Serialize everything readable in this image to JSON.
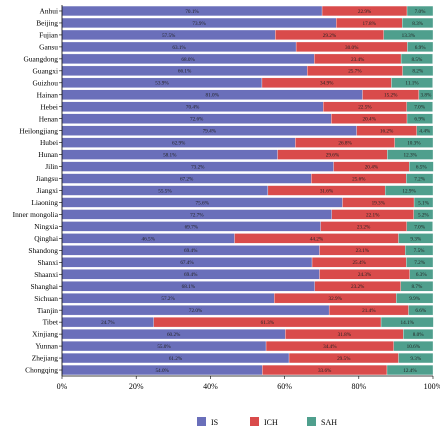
{
  "chart_data": {
    "type": "bar",
    "orientation": "horizontal",
    "stacked": true,
    "percent_stacked": true,
    "categories": [
      "Anhui",
      "Beijing",
      "Fujian",
      "Gansu",
      "Guangdong",
      "Guangxi",
      "Guizhou",
      "Hainan",
      "Hebei",
      "Henan",
      "Heilongjiang",
      "Hubei",
      "Hunan",
      "Jilin",
      "Jiangsu",
      "Jiangxi",
      "Liaoning",
      "Inner mongolia",
      "Ningxia",
      "Qinghai",
      "Shandong",
      "Shanxi",
      "Shaanxi",
      "Shanghai",
      "Sichuan",
      "Tianjin",
      "Tibet",
      "Xinjiang",
      "Yunnan",
      "Zhejiang",
      "Chongqing"
    ],
    "series": [
      {
        "name": "IS",
        "color": "#6a6fba",
        "values": [
          70.1,
          73.9,
          57.5,
          63.1,
          68.0,
          66.1,
          53.9,
          81.0,
          70.4,
          72.6,
          79.4,
          62.9,
          58.1,
          73.2,
          67.2,
          55.5,
          75.6,
          72.7,
          69.7,
          46.5,
          69.4,
          67.4,
          69.4,
          68.1,
          57.2,
          72.0,
          24.7,
          60.2,
          55.0,
          61.2,
          54.0
        ],
        "labels": [
          "70.1%",
          "73.9%",
          "57.5%",
          "63.1%",
          "68.0%",
          "66.1%",
          "53.9%",
          "81.0%",
          "70.4%",
          "72.6%",
          "79.4%",
          "62.9%",
          "58.1%",
          "73.2%",
          "67.2%",
          "55.5%",
          "75.6%",
          "72.7%",
          "69.7%",
          "46.5%",
          "69.4%",
          "67.4%",
          "69.4%",
          "68.1%",
          "57.2%",
          "72.0%",
          "24.7%",
          "60.2%",
          "55.0%",
          "61.2%",
          "54.0%"
        ]
      },
      {
        "name": "ICH",
        "color": "#d94b4b",
        "values": [
          22.9,
          17.8,
          29.2,
          30.0,
          23.4,
          25.7,
          34.9,
          15.2,
          22.5,
          20.4,
          16.2,
          26.8,
          29.6,
          20.4,
          25.6,
          31.6,
          19.3,
          22.1,
          23.2,
          44.2,
          23.1,
          25.4,
          24.3,
          23.2,
          32.9,
          21.4,
          61.3,
          31.8,
          34.4,
          29.5,
          33.6
        ],
        "labels": [
          "22.9%",
          "17.8%",
          "29.2%",
          "30.0%",
          "23.4%",
          "25.7%",
          "34.9%",
          "15.2%",
          "22.5%",
          "20.4%",
          "16.2%",
          "26.8%",
          "29.6%",
          "20.4%",
          "25.6%",
          "31.6%",
          "19.3%",
          "22.1%",
          "23.2%",
          "44.2%",
          "23.1%",
          "25.4%",
          "24.3%",
          "23.2%",
          "32.9%",
          "21.4%",
          "61.3%",
          "31.8%",
          "34.4%",
          "29.5%",
          "33.6%"
        ]
      },
      {
        "name": "SAH",
        "color": "#4f9f8d",
        "values": [
          7.0,
          8.3,
          13.3,
          6.9,
          8.5,
          8.2,
          11.1,
          3.8,
          7.0,
          6.9,
          4.4,
          10.3,
          12.3,
          6.5,
          7.2,
          12.9,
          5.1,
          5.2,
          7.0,
          9.3,
          7.5,
          7.2,
          6.3,
          8.7,
          9.9,
          6.6,
          14.1,
          8.0,
          10.6,
          9.3,
          12.4
        ],
        "labels": [
          "7.0%",
          "8.3%",
          "13.3%",
          "6.9%",
          "8.5%",
          "8.2%",
          "11.1%",
          "3.8%",
          "7.0%",
          "6.9%",
          "4.4%",
          "10.3%",
          "12.3%",
          "6.5%",
          "7.2%",
          "12.9%",
          "5.1%",
          "5.2%",
          "7.0%",
          "9.3%",
          "7.5%",
          "7.2%",
          "6.3%",
          "8.7%",
          "9.9%",
          "6.6%",
          "14.1%",
          "8.0%",
          "10.6%",
          "9.3%",
          "12.4%"
        ]
      }
    ],
    "xlim": [
      0,
      100
    ],
    "x_ticks": [
      "0%",
      "20%",
      "40%",
      "60%",
      "80%",
      "100%"
    ],
    "title": "",
    "xlabel": "",
    "ylabel": "",
    "legend": {
      "position": "bottom",
      "entries": [
        "IS",
        "ICH",
        "SAH"
      ]
    },
    "grid": false
  }
}
